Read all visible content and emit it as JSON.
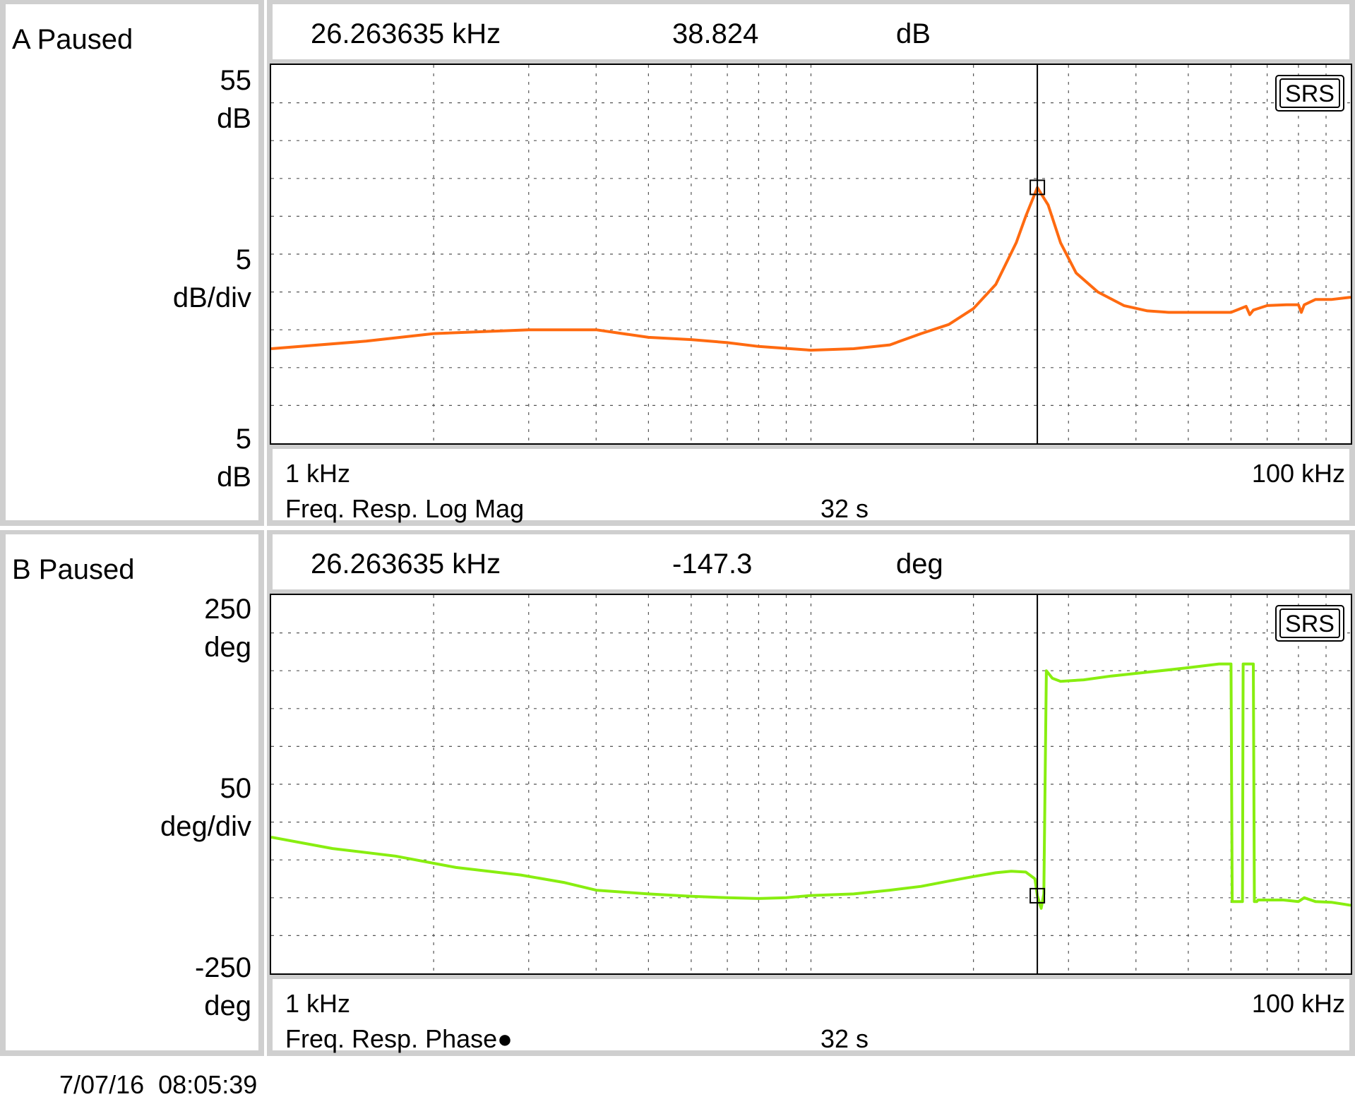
{
  "panels": [
    {
      "id": "a",
      "status": "A Paused",
      "marker_freq": "26.263635 kHz",
      "marker_value": "38.824",
      "marker_unit": "dB",
      "y_top": "55",
      "y_top_unit": "dB",
      "y_div": "5",
      "y_div_unit": "dB/div",
      "y_bottom": "5",
      "y_bottom_unit": "dB",
      "x_start": "1 kHz",
      "x_end": "100 kHz",
      "measurement": "Freq. Resp. Log Mag",
      "time": "32 s",
      "logo": "SRS",
      "trace_color": "#ff6a10"
    },
    {
      "id": "b",
      "status": "B Paused",
      "marker_freq": "26.263635 kHz",
      "marker_value": "-147.3",
      "marker_unit": "deg",
      "y_top": "250",
      "y_top_unit": "deg",
      "y_div": "50",
      "y_div_unit": "deg/div",
      "y_bottom": "-250",
      "y_bottom_unit": "deg",
      "x_start": "1 kHz",
      "x_end": "100 kHz",
      "measurement": "Freq. Resp. Phase●",
      "time": "32 s",
      "logo": "SRS",
      "trace_color": "#88ee10"
    }
  ],
  "timestamp": "7/07/16  08:05:39",
  "chart_data": [
    {
      "type": "line",
      "xscale": "log",
      "xlim": [
        1000,
        100000
      ],
      "ylim": [
        5,
        55
      ],
      "grid": true,
      "marker": {
        "x": 26263.635,
        "y": 38.824
      },
      "series": [
        {
          "x": [
            1000,
            1500,
            2000,
            3000,
            4000,
            5000,
            6000,
            7000,
            8000,
            10000,
            12000,
            14000,
            16000,
            18000,
            20000,
            22000,
            24000,
            25000,
            26263.635,
            27500,
            29000,
            31000,
            34000,
            38000,
            42000,
            46000,
            52000,
            60000,
            64000,
            65000,
            66000,
            70000,
            76000,
            80000,
            81000,
            82000,
            86000,
            92000,
            100000
          ],
          "y": [
            17.5,
            18.5,
            19.5,
            20,
            20,
            19,
            18.7,
            18.3,
            17.8,
            17.3,
            17.5,
            18,
            19.5,
            20.7,
            22.8,
            26,
            31.5,
            35,
            38.8,
            36.5,
            31.5,
            27.5,
            25,
            23.2,
            22.5,
            22.3,
            22.3,
            22.3,
            23.1,
            22,
            22.6,
            23.2,
            23.3,
            23.3,
            22.3,
            23.3,
            24,
            24,
            24.3
          ]
        }
      ]
    },
    {
      "type": "line",
      "xscale": "log",
      "xlim": [
        1000,
        100000
      ],
      "ylim": [
        -250,
        250
      ],
      "grid": true,
      "marker": {
        "x": 26263.635,
        "y": -147.3
      },
      "series": [
        {
          "x": [
            1000,
            1300,
            1700,
            2200,
            2900,
            3500,
            4000,
            5000,
            6000,
            7000,
            8000,
            9000,
            10000,
            12000,
            14000,
            16000,
            18000,
            20000,
            22000,
            23500,
            25000,
            26000,
            26263.635,
            26700,
            27000,
            27300,
            28000,
            29000,
            32000,
            36000,
            42000,
            50000,
            57000,
            60000,
            60300,
            63000,
            63200,
            66000,
            66300,
            67000,
            67300,
            75000,
            80000,
            82000,
            86000,
            92000,
            100000
          ],
          "y": [
            -70,
            -85,
            -95,
            -110,
            -120,
            -130,
            -140,
            -145,
            -148,
            -150,
            -151,
            -150,
            -147,
            -145,
            -140,
            -135,
            -128,
            -122,
            -117,
            -115,
            -116,
            -125,
            -147.3,
            -164,
            -145,
            150,
            140,
            136,
            138,
            143,
            148,
            154,
            159,
            159,
            -155,
            -155,
            159,
            159,
            -155,
            -155,
            -153,
            -153,
            -155,
            -150,
            -155,
            -156,
            -160
          ]
        }
      ]
    }
  ]
}
